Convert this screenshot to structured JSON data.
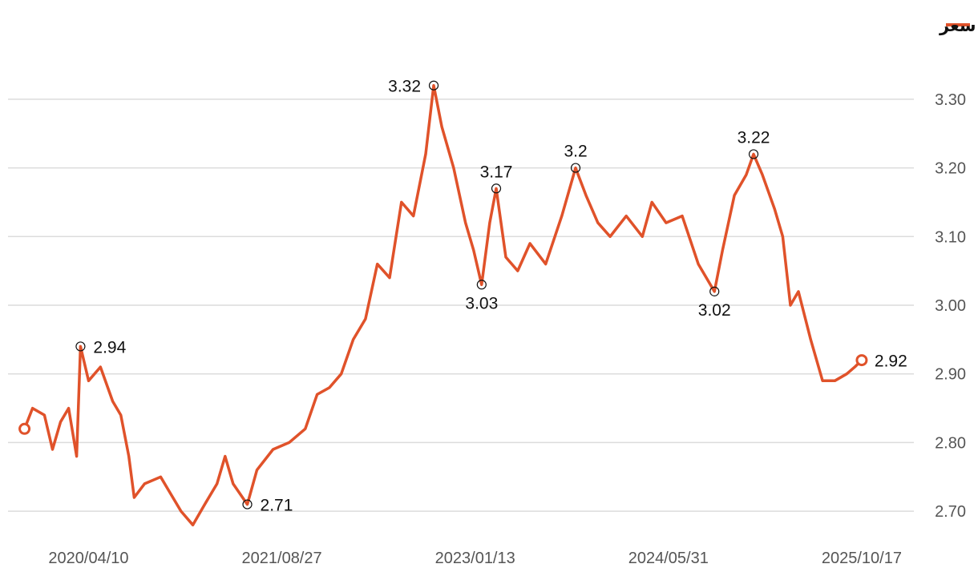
{
  "chart_data": {
    "type": "line",
    "x": [
      "2019/10/26",
      "2019/11/16",
      "2019/12/17",
      "2020/01/07",
      "2020/01/28",
      "2020/02/18",
      "2020/03/10",
      "2020/03/20",
      "2020/04/10",
      "2020/05/11",
      "2020/06/12",
      "2020/07/03",
      "2020/07/24",
      "2020/08/07",
      "2020/09/03",
      "2020/10/15",
      "2020/11/05",
      "2020/12/07",
      "2021/01/07",
      "2021/02/07",
      "2021/03/11",
      "2021/04/01",
      "2021/04/22",
      "2021/05/29",
      "2021/06/23",
      "2021/08/04",
      "2021/09/15",
      "2021/10/27",
      "2021/11/27",
      "2021/12/29",
      "2022/01/29",
      "2022/03/01",
      "2022/04/02",
      "2022/05/03",
      "2022/06/04",
      "2022/07/05",
      "2022/08/05",
      "2022/09/06",
      "2022/09/27",
      "2022/10/18",
      "2022/11/18",
      "2022/12/19",
      "2023/01/09",
      "2023/01/30",
      "2023/02/20",
      "2023/03/09",
      "2023/04/03",
      "2023/05/04",
      "2023/06/05",
      "2023/07/16",
      "2023/08/27",
      "2023/10/02",
      "2023/10/29",
      "2023/11/29",
      "2023/12/31",
      "2024/02/11",
      "2024/03/24",
      "2024/04/18",
      "2024/05/25",
      "2024/07/06",
      "2024/08/17",
      "2024/09/28",
      "2024/10/19",
      "2024/11/19",
      "2024/12/20",
      "2025/01/08",
      "2025/01/31",
      "2025/03/04",
      "2025/03/25",
      "2025/04/14",
      "2025/05/05",
      "2025/06/06",
      "2025/07/07",
      "2025/08/08",
      "2025/09/08",
      "2025/09/29",
      "2025/10/17"
    ],
    "series": [
      {
        "name": "آخر سعر",
        "color": "#e0522a",
        "values": [
          2.82,
          2.85,
          2.84,
          2.79,
          2.83,
          2.85,
          2.78,
          2.94,
          2.89,
          2.91,
          2.86,
          2.84,
          2.78,
          2.72,
          2.74,
          2.75,
          2.73,
          2.7,
          2.68,
          2.71,
          2.74,
          2.78,
          2.74,
          2.71,
          2.76,
          2.79,
          2.8,
          2.82,
          2.87,
          2.88,
          2.9,
          2.95,
          2.98,
          3.06,
          3.04,
          3.15,
          3.13,
          3.22,
          3.32,
          3.26,
          3.2,
          3.12,
          3.08,
          3.03,
          3.12,
          3.17,
          3.07,
          3.05,
          3.09,
          3.06,
          3.13,
          3.2,
          3.16,
          3.12,
          3.1,
          3.13,
          3.1,
          3.15,
          3.12,
          3.13,
          3.06,
          3.02,
          3.08,
          3.16,
          3.19,
          3.22,
          3.19,
          3.14,
          3.1,
          3.0,
          3.02,
          2.95,
          2.89,
          2.89,
          2.9,
          2.91,
          2.92
        ]
      }
    ],
    "annotations": [
      {
        "x": "2020/03/20",
        "value": 2.94
      },
      {
        "x": "2021/05/29",
        "value": 2.71
      },
      {
        "x": "2022/09/27",
        "value": 3.32
      },
      {
        "x": "2023/01/30",
        "value": 3.03
      },
      {
        "x": "2023/03/09",
        "value": 3.17
      },
      {
        "x": "2023/10/02",
        "value": 3.2
      },
      {
        "x": "2024/09/28",
        "value": 3.02
      },
      {
        "x": "2025/01/08",
        "value": 3.22
      },
      {
        "x": "2025/10/17",
        "value": 2.92
      }
    ],
    "xlim": [
      "2019/09/13",
      "2026/03/02"
    ],
    "xticks": [
      "2020/04/10",
      "2021/08/27",
      "2023/01/13",
      "2024/05/31",
      "2025/10/17"
    ],
    "ylim": [
      2.65,
      3.35
    ],
    "yticks": [
      {
        "value": 2.7,
        "label": "2.70"
      },
      {
        "value": 2.8,
        "label": "2.80"
      },
      {
        "value": 2.9,
        "label": "2.90"
      },
      {
        "value": 3.0,
        "label": "3.00"
      },
      {
        "value": 3.1,
        "label": "3.10"
      },
      {
        "value": 3.2,
        "label": "3.20"
      },
      {
        "value": 3.3,
        "label": "3.30"
      }
    ],
    "grid": true,
    "legend": "top-right"
  }
}
